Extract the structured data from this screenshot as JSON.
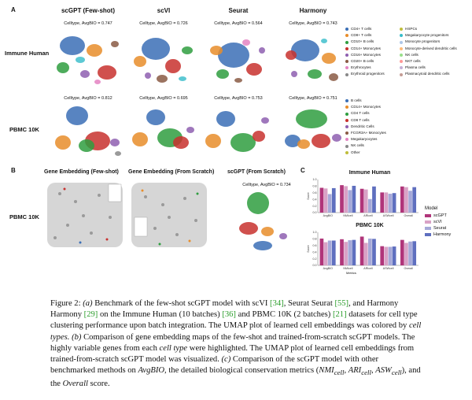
{
  "panels": {
    "a": {
      "letter": "A",
      "columns": [
        "scGPT (Few-shot)",
        "scVI",
        "Seurat",
        "Harmony"
      ],
      "rows": [
        "Immune Human",
        "PBMC 10K"
      ],
      "captions_row1": [
        "Celltype, AvgBIO = 0.747",
        "Celltype, AvgBIO = 0.726",
        "Celltype, AvgBIO = 0.564",
        "Celltype, AvgBIO = 0.743"
      ],
      "captions_row2": [
        "Celltype, AvgBIO = 0.812",
        "Celltype, AvgBIO = 0.695",
        "Celltype, AvgBIO = 0.753",
        "Celltype, AvgBIO = 0.751"
      ],
      "legend_immune_col1": [
        {
          "label": "CD4+ T cells",
          "color": "#3b6fb6"
        },
        {
          "label": "CD8+ T cells",
          "color": "#e88d2a"
        },
        {
          "label": "CD10+ B cells",
          "color": "#2f9e3f"
        },
        {
          "label": "CD14+ Monocytes",
          "color": "#c8312e"
        },
        {
          "label": "CD16+ Monocytes",
          "color": "#8e5fb0"
        },
        {
          "label": "CD20+ B cells",
          "color": "#8a5a44"
        },
        {
          "label": "Erythrocytes",
          "color": "#e483c2"
        },
        {
          "label": "Erythroid progenitors",
          "color": "#888888"
        }
      ],
      "legend_immune_col2": [
        {
          "label": "HSPCs",
          "color": "#bfbd3a"
        },
        {
          "label": "Megakaryocyte progenitors",
          "color": "#35bcc9"
        },
        {
          "label": "Monocyte progenitors",
          "color": "#aec7e8"
        },
        {
          "label": "Monocyte-derived dendritic cells",
          "color": "#ffbb78"
        },
        {
          "label": "NK cells",
          "color": "#98df8a"
        },
        {
          "label": "NKT cells",
          "color": "#ff9896"
        },
        {
          "label": "Plasma cells",
          "color": "#c5b0d5"
        },
        {
          "label": "Plasmacytoid dendritic cells",
          "color": "#c49c94"
        }
      ],
      "legend_pbmc": [
        {
          "label": "B cells",
          "color": "#3b6fb6"
        },
        {
          "label": "CD14+ Monocytes",
          "color": "#e88d2a"
        },
        {
          "label": "CD4 T cells",
          "color": "#2f9e3f"
        },
        {
          "label": "CD8 T cells",
          "color": "#c8312e"
        },
        {
          "label": "Dendritic Cells",
          "color": "#8e5fb0"
        },
        {
          "label": "FCGR3A+ Monocytes",
          "color": "#8a5a44"
        },
        {
          "label": "Megakaryocytes",
          "color": "#e483c2"
        },
        {
          "label": "NK cells",
          "color": "#888888"
        },
        {
          "label": "Other",
          "color": "#bfbd3a"
        }
      ]
    },
    "b": {
      "letter": "B",
      "titles": [
        "Gene Embedding (Few-shot)",
        "Gene Embedding (From Scratch)",
        "scGPT (From Scratch)"
      ],
      "row_label": "PBMC 10K",
      "caption": "Celltype, AvgBIO = 0.734"
    },
    "c": {
      "letter": "C",
      "legend_title": "Model",
      "metric_axis_label": "Metrics"
    }
  },
  "colors": {
    "scGPT": "#b0357a",
    "scVI": "#d9a2c6",
    "Seurat": "#a6a9d8",
    "Harmony": "#5f6fbf"
  },
  "chart_data": [
    {
      "type": "bar",
      "title": "Immune Human",
      "categories": [
        "AvgBIO",
        "NMIcell",
        "ARIcell",
        "ASWcell",
        "Overall"
      ],
      "ylabel": "Score",
      "ylim": [
        0,
        1
      ],
      "series": [
        {
          "name": "scGPT",
          "values": [
            0.75,
            0.83,
            0.72,
            0.61,
            0.79
          ]
        },
        {
          "name": "scVI",
          "values": [
            0.73,
            0.8,
            0.7,
            0.61,
            0.77
          ]
        },
        {
          "name": "Seurat",
          "values": [
            0.56,
            0.68,
            0.41,
            0.57,
            0.66
          ]
        },
        {
          "name": "Harmony",
          "values": [
            0.74,
            0.81,
            0.79,
            0.59,
            0.77
          ]
        }
      ]
    },
    {
      "type": "bar",
      "title": "PBMC 10K",
      "categories": [
        "AvgBIO",
        "NMIcell",
        "ARIcell",
        "ASWcell",
        "Overall"
      ],
      "ylabel": "Score",
      "ylim": [
        0,
        1
      ],
      "series": [
        {
          "name": "scGPT",
          "values": [
            0.81,
            0.79,
            0.87,
            0.58,
            0.77
          ]
        },
        {
          "name": "scVI",
          "values": [
            0.7,
            0.71,
            0.68,
            0.56,
            0.68
          ]
        },
        {
          "name": "Seurat",
          "values": [
            0.75,
            0.76,
            0.81,
            0.56,
            0.72
          ]
        },
        {
          "name": "Harmony",
          "values": [
            0.75,
            0.77,
            0.8,
            0.57,
            0.73
          ]
        }
      ]
    }
  ],
  "caption": {
    "fig_label": "Figure 2:",
    "a_marker": "(a)",
    "t1": " Benchmark of the few-shot scGPT model with scVI ",
    "c1": "[34]",
    "t2": ", Seurat Seurat ",
    "c2": "[55]",
    "t3": ", and Harmony Harmony ",
    "c3": "[29]",
    "t4": " on the Immune Human (10 batches) ",
    "c4": "[36]",
    "t5": " and PBMC 10K (2 batches) ",
    "c5": "[21]",
    "t6": " datasets for cell type clustering performance upon batch integration. The UMAP plot of learned cell embeddings was colored by ",
    "i1": "cell types.",
    "b_marker": " (b)",
    "t7": " Comparison of gene embedding maps of the few-shot and trained-from-scratch scGPT models. The highly variable genes from each ",
    "i2": "cell type",
    "t8": " were highlighted. The UMAP plot of learned cell embeddings from trained-from-scratch scGPT model was visualized. ",
    "c_marker": "(c)",
    "t9": " Comparison of the scGPT model with other benchmarked methods on ",
    "i3": "AvgBIO",
    "t10": ", the detailed biological conservation metrics (",
    "i4": "NMI",
    "s4": "cell",
    "t11": ", ",
    "i5": "ARI",
    "s5": "cell",
    "t12": ", ",
    "i6": "ASW",
    "s6": "cell",
    "t13": "), and the ",
    "i7": "Overall",
    "t14": " score."
  }
}
